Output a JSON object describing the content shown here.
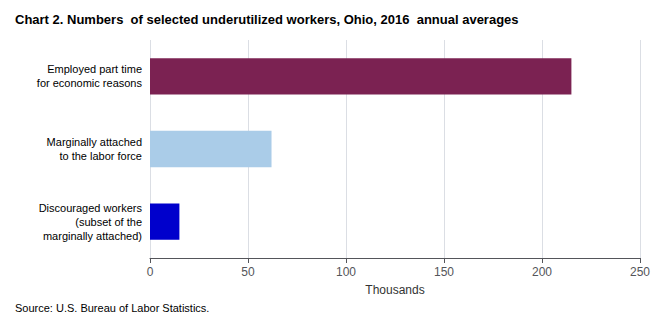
{
  "chart_data": {
    "type": "bar",
    "orientation": "horizontal",
    "title": "Chart 2. Numbers  of selected underutilized workers, Ohio, 2016  annual averages",
    "categories": [
      "Discouraged workers\n(subset of the\nmarginally attached)",
      "Marginally attached\nto the labor force",
      "Employed part time\nfor economic reasons"
    ],
    "values": [
      15,
      62,
      215
    ],
    "colors": [
      "#0000cc",
      "#aacce8",
      "#7b2252"
    ],
    "xlabel": "Thousands",
    "xlim": [
      0,
      250
    ],
    "xticks": [
      0,
      50,
      100,
      150,
      200,
      250
    ],
    "grid": true,
    "annotations": [
      "Source: U.S. Bureau of Labor Statistics."
    ]
  }
}
